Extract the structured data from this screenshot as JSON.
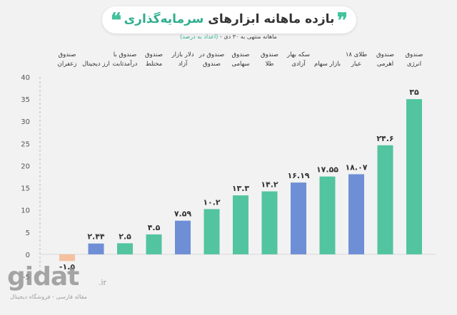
{
  "header": {
    "title_prefix": "بازده ماهانه ابزارهای ",
    "title_highlight": "سرمایه‌گذاری",
    "quote_open": "❞",
    "quote_close": "❝",
    "subtitle_main": "ماهانه منتهی به ۳۰ دی - ",
    "subtitle_note": "(اعداد به درصد)"
  },
  "watermark": {
    "logo": "gidat",
    "domain": ".ir",
    "tagline": "مقاله فارسی - فروشگاه دیجیتال"
  },
  "chart_data": {
    "type": "bar",
    "title": "بازده ماهانه ابزارهای سرمایه‌گذاری",
    "subtitle": "ماهانه منتهی به ۳۰ دی - (اعداد به درصد)",
    "ylim": [
      -5,
      40
    ],
    "yticks": [
      "40",
      "35",
      "30",
      "25",
      "20",
      "15",
      "10",
      "5",
      "0",
      "-5"
    ],
    "ytick_values": [
      40,
      35,
      30,
      25,
      20,
      15,
      10,
      5,
      0,
      -5
    ],
    "grid": false,
    "bars": [
      {
        "label_lines": [
          "صندوق",
          "انرژی"
        ],
        "value": 35,
        "value_label": "۳۵",
        "color": "#52c4a0"
      },
      {
        "label_lines": [
          "صندوق",
          "اهرمی"
        ],
        "value": 24.6,
        "value_label": "۲۴.۶",
        "color": "#52c4a0"
      },
      {
        "label_lines": [
          "طلای ۱۸",
          "عیار"
        ],
        "value": 18.07,
        "value_label": "۱۸.۰۷",
        "color": "#6e8fd6"
      },
      {
        "label_lines": [
          "",
          "بازار سهام"
        ],
        "value": 17.55,
        "value_label": "۱۷.۵۵",
        "color": "#52c4a0"
      },
      {
        "label_lines": [
          "سکه بهار",
          "آزادی"
        ],
        "value": 16.19,
        "value_label": "۱۶.۱۹",
        "color": "#6e8fd6"
      },
      {
        "label_lines": [
          "صندوق",
          "طلا"
        ],
        "value": 14.2,
        "value_label": "۱۴.۲",
        "color": "#52c4a0"
      },
      {
        "label_lines": [
          "صندوق",
          "سهامی"
        ],
        "value": 13.3,
        "value_label": "۱۳.۳",
        "color": "#52c4a0"
      },
      {
        "label_lines": [
          "صندوق در",
          "صندوق"
        ],
        "value": 10.2,
        "value_label": "۱۰.۲",
        "color": "#52c4a0"
      },
      {
        "label_lines": [
          "دلار بازار",
          "آزاد"
        ],
        "value": 7.59,
        "value_label": "۷.۵۹",
        "color": "#6e8fd6"
      },
      {
        "label_lines": [
          "صندوق",
          "مختلط"
        ],
        "value": 4.5,
        "value_label": "۴.۵",
        "color": "#52c4a0"
      },
      {
        "label_lines": [
          "صندوق با",
          "درآمدثابت"
        ],
        "value": 2.5,
        "value_label": "۲.۵",
        "color": "#52c4a0"
      },
      {
        "label_lines": [
          "",
          "ارز دیجیتال"
        ],
        "value": 2.44,
        "value_label": "۲.۴۴",
        "color": "#6e8fd6"
      },
      {
        "label_lines": [
          "صندوق",
          "زعفران"
        ],
        "value": -1.5,
        "value_label": "-۱.۵",
        "color": "#f5c09f"
      }
    ]
  }
}
